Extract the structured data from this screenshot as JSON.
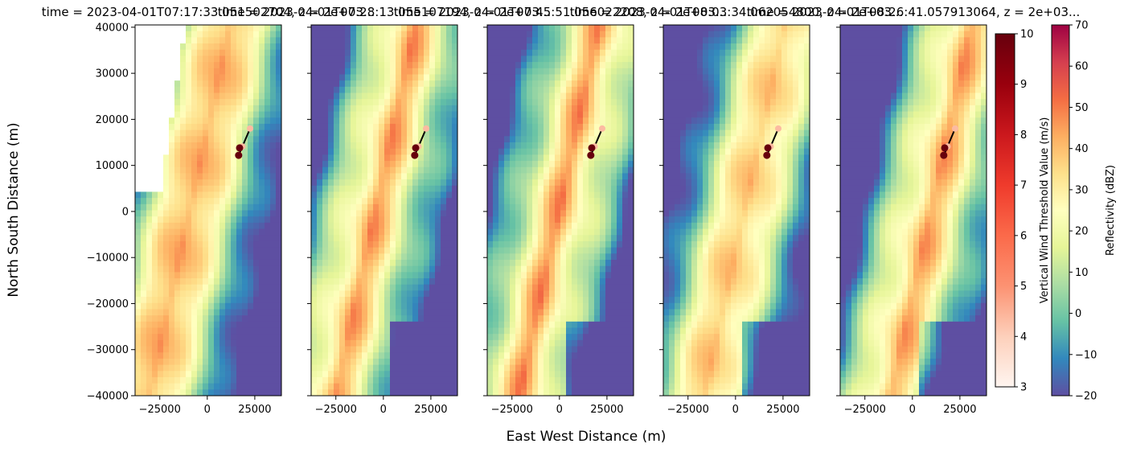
{
  "figure": {
    "xlabel": "East West Distance (m)",
    "ylabel": "North South Distance (m)"
  },
  "chart_data": {
    "type": "heatmap",
    "panels": [
      {
        "title": "time = 2023-04-01T07:17:33.051502704, z = 2e+03..."
      },
      {
        "title": "time = 2023-04-01T07:28:13.055107194, z = 2e+03..."
      },
      {
        "title": "time = 2023-04-01T07:45:51.056022208, z = 2e+03..."
      },
      {
        "title": "time = 2023-04-01T08:03:34.062054800, z = 2e+03..."
      },
      {
        "title": "time = 2023-04-01T08:26:41.057913064, z = 2e+03..."
      }
    ],
    "xlim": [
      -38000,
      39000
    ],
    "ylim": [
      -40000,
      40500
    ],
    "x_ticks": [
      -25000,
      0,
      25000
    ],
    "y_ticks": [
      40000,
      30000,
      20000,
      10000,
      0,
      -10000,
      -20000,
      -30000,
      -40000
    ],
    "track_points": [
      {
        "x": 16500,
        "y": 12200
      },
      {
        "x": 17000,
        "y": 13800
      },
      {
        "x": 18500,
        "y": 14100
      },
      {
        "x": 22500,
        "y": 18000
      }
    ],
    "colorbars": [
      {
        "label": "Vertical Wind Threshold Value (m/s)",
        "min": 3,
        "max": 10,
        "ticks": [
          10,
          9,
          8,
          7,
          6,
          5,
          4,
          3
        ],
        "colormap": "Reds"
      },
      {
        "label": "Reflectivity (dBZ)",
        "min": -20,
        "max": 70,
        "ticks": [
          70,
          60,
          50,
          40,
          30,
          20,
          10,
          0,
          -10,
          -20
        ],
        "colormap": "Spectral_r"
      }
    ]
  },
  "colors": {
    "reds": [
      "#fff5f0",
      "#fdd0bb",
      "#fc9272",
      "#fb6a4a",
      "#ef3b2c",
      "#cb181d",
      "#99000d",
      "#67000d"
    ],
    "spectral": [
      "#5e4fa2",
      "#3288bd",
      "#66c2a5",
      "#abdda4",
      "#e6f598",
      "#ffffbf",
      "#fee08b",
      "#fdae61",
      "#f46d43",
      "#d53e4f",
      "#9e0142"
    ]
  }
}
